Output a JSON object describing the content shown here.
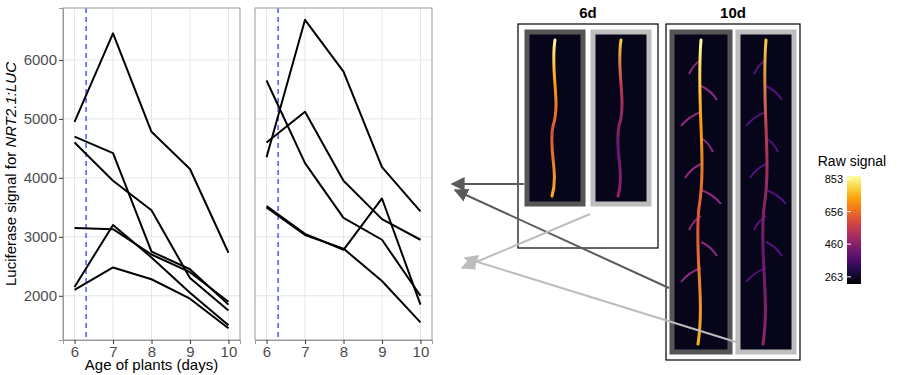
{
  "chart_data": [
    {
      "type": "line",
      "x_label": "Age of plants (days)",
      "y_label": "Luciferase signal for NRT2.1:LUC",
      "x": [
        6,
        7,
        8,
        9,
        10
      ],
      "series": [
        {
          "color": "#000000",
          "values": [
            4950,
            6450,
            4780,
            4150,
            2730
          ]
        },
        {
          "color": "#000000",
          "values": [
            4700,
            4420,
            2750,
            2450,
            1850
          ]
        },
        {
          "color": "#000000",
          "values": [
            4600,
            3950,
            3450,
            2300,
            1750
          ]
        },
        {
          "color": "#000000",
          "values": [
            3150,
            3130,
            2700,
            2400,
            1900
          ]
        },
        {
          "color": "#000000",
          "values": [
            2150,
            3200,
            2650,
            2050,
            1500
          ]
        },
        {
          "color": "#000000",
          "values": [
            2100,
            2480,
            2280,
            1950,
            1450
          ]
        }
      ],
      "xlim": [
        5.7,
        10.3
      ],
      "xticks": [
        6,
        7,
        8,
        9,
        10
      ],
      "ylim": [
        1250,
        6880
      ],
      "yticks": [
        2000,
        3000,
        4000,
        5000,
        6000
      ],
      "grid": true,
      "reference_line": {
        "x": 6.3,
        "color": "#2b3cff",
        "line_style": "dashed"
      }
    },
    {
      "type": "line",
      "x": [
        6,
        7,
        8,
        9,
        10
      ],
      "series": [
        {
          "color": "#000000",
          "values": [
            4350,
            6680,
            5800,
            4180,
            3430
          ]
        },
        {
          "color": "#000000",
          "values": [
            4600,
            5120,
            3950,
            3300,
            2950
          ]
        },
        {
          "color": "#000000",
          "values": [
            5650,
            4250,
            3320,
            2950,
            2000
          ]
        },
        {
          "color": "#000000",
          "values": [
            3520,
            3050,
            2780,
            3650,
            1850
          ]
        },
        {
          "color": "#000000",
          "values": [
            3500,
            3030,
            2800,
            2250,
            1550
          ]
        }
      ],
      "xlim": [
        5.7,
        10.3
      ],
      "xticks": [
        6,
        7,
        8,
        9,
        10
      ],
      "ylim": [
        1250,
        6880
      ],
      "yticks": [
        2000,
        3000,
        4000,
        5000,
        6000
      ],
      "grid": true,
      "tick_labels": "x",
      "reference_line": {
        "x": 6.3,
        "color": "#2b3cff",
        "line_style": "dashed"
      }
    }
  ],
  "images": {
    "groups": [
      {
        "title": "6d"
      },
      {
        "title": "10d"
      }
    ],
    "colorbar": {
      "title": "Raw signal",
      "range": [
        220,
        871
      ],
      "ticks": [
        853,
        656,
        460,
        263
      ]
    }
  }
}
